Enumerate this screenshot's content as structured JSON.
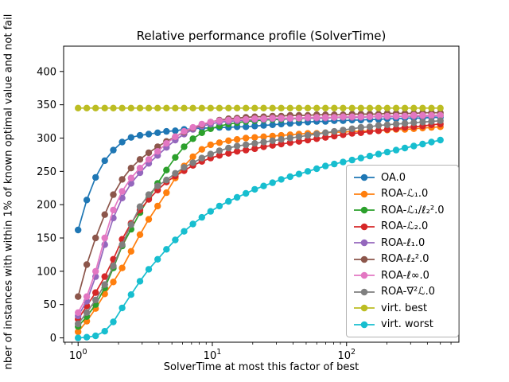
{
  "figure": {
    "title": "Relative performance profile (SolverTime)",
    "xlabel": "SolverTime at most this factor of best",
    "ylabel_visible": "nber of instances with within 1% of known optimal value and not fail",
    "background": "#ffffff",
    "frame_color": "#000000"
  },
  "chart_data": {
    "type": "line",
    "xscale": "log",
    "grid": false,
    "legend_position": "center right",
    "xlim": [
      0.78,
      687
    ],
    "ylim": [
      -6.5,
      438
    ],
    "yticks": [
      0,
      50,
      100,
      150,
      200,
      250,
      300,
      350,
      400
    ],
    "x_major_ticks": [
      {
        "value": 1,
        "base": "10",
        "exp": "0"
      },
      {
        "value": 10,
        "base": "10",
        "exp": "1"
      },
      {
        "value": 100,
        "base": "10",
        "exp": "2"
      }
    ],
    "x_minor_ticks": [
      0.8,
      0.9,
      2,
      3,
      4,
      5,
      6,
      7,
      8,
      9,
      20,
      30,
      40,
      50,
      60,
      70,
      80,
      90,
      200,
      300,
      400,
      500,
      600
    ],
    "marker": "circle",
    "marker_size": 4.2,
    "line_width": 1.7,
    "x": [
      1.0,
      1.16,
      1.35,
      1.58,
      1.83,
      2.13,
      2.48,
      2.89,
      3.36,
      3.91,
      4.55,
      5.3,
      6.16,
      7.17,
      8.35,
      9.71,
      11.3,
      13.2,
      15.3,
      17.8,
      20.7,
      24.1,
      28.1,
      32.6,
      38.0,
      44.2,
      51.4,
      59.9,
      69.6,
      81.0,
      94.3,
      110,
      128,
      149,
      173,
      201,
      234,
      272,
      317,
      369,
      429,
      500
    ],
    "series": [
      {
        "name": "OA.0",
        "color": "#1f77b4",
        "values": [
          162,
          207,
          241,
          266,
          282,
          294,
          301,
          304,
          306,
          308,
          310,
          311,
          313,
          314,
          315,
          315,
          316,
          316,
          317,
          317,
          318,
          319,
          320,
          321,
          322,
          323,
          324,
          325,
          325,
          326,
          326,
          327,
          327,
          328,
          328,
          329,
          329,
          330,
          330,
          330,
          331,
          331
        ]
      },
      {
        "name": "ROA-ℒ₁.0",
        "color": "#ff7f0e",
        "values": [
          9,
          25,
          44,
          66,
          84,
          105,
          130,
          155,
          178,
          198,
          218,
          240,
          258,
          272,
          283,
          290,
          293,
          296,
          298,
          300,
          301,
          302,
          303,
          304,
          305,
          306,
          307,
          307,
          308,
          309,
          309,
          310,
          310,
          311,
          311,
          312,
          313,
          313,
          314,
          315,
          316,
          317
        ]
      },
      {
        "name": "ROA-ℒ₁/ℓ₂².0",
        "color": "#2ca02c",
        "values": [
          17,
          32,
          50,
          75,
          105,
          138,
          163,
          188,
          210,
          232,
          252,
          271,
          287,
          299,
          308,
          314,
          318,
          321,
          323,
          325,
          326,
          327,
          328,
          328,
          329,
          329,
          330,
          330,
          330,
          331,
          331,
          331,
          332,
          332,
          332,
          332,
          333,
          333,
          333,
          333,
          334,
          334
        ]
      },
      {
        "name": "ROA-ℒ₂.0",
        "color": "#d62728",
        "values": [
          28,
          48,
          68,
          92,
          118,
          148,
          172,
          192,
          208,
          222,
          234,
          243,
          251,
          259,
          265,
          270,
          274,
          277,
          280,
          282,
          284,
          287,
          289,
          291,
          293,
          295,
          297,
          299,
          301,
          303,
          305,
          307,
          308,
          310,
          311,
          313,
          314,
          316,
          317,
          318,
          320,
          321
        ]
      },
      {
        "name": "ROA-ℓ₁.0",
        "color": "#9467bd",
        "values": [
          33,
          55,
          92,
          140,
          180,
          210,
          232,
          248,
          262,
          274,
          286,
          297,
          306,
          313,
          318,
          321,
          324,
          325,
          326,
          327,
          328,
          328,
          329,
          329,
          329,
          330,
          330,
          330,
          330,
          331,
          331,
          331,
          331,
          332,
          332,
          332,
          332,
          333,
          333,
          333,
          333,
          334
        ]
      },
      {
        "name": "ROA-ℓ₂².0",
        "color": "#8c564b",
        "values": [
          62,
          110,
          150,
          185,
          215,
          238,
          255,
          268,
          278,
          287,
          295,
          302,
          309,
          315,
          320,
          324,
          327,
          329,
          330,
          331,
          332,
          332,
          333,
          333,
          334,
          334,
          334,
          335,
          335,
          335,
          335,
          336,
          336,
          336,
          336,
          337,
          337,
          337,
          337,
          338,
          338,
          338
        ]
      },
      {
        "name": "ROA-ℓ∞.0",
        "color": "#e377c2",
        "values": [
          38,
          62,
          100,
          150,
          192,
          220,
          240,
          255,
          268,
          280,
          292,
          302,
          310,
          316,
          321,
          324,
          326,
          327,
          328,
          328,
          329,
          329,
          330,
          330,
          330,
          330,
          331,
          331,
          331,
          331,
          332,
          332,
          332,
          332,
          333,
          333,
          333,
          333,
          334,
          334,
          334,
          334
        ]
      },
      {
        "name": "ROA-∇²ℒ.0",
        "color": "#7f7f7f",
        "values": [
          21,
          38,
          57,
          80,
          108,
          140,
          170,
          197,
          215,
          228,
          237,
          247,
          256,
          263,
          270,
          276,
          281,
          285,
          288,
          290,
          292,
          294,
          296,
          298,
          300,
          302,
          304,
          306,
          308,
          310,
          312,
          314,
          316,
          317,
          319,
          320,
          321,
          322,
          323,
          324,
          325,
          326
        ]
      },
      {
        "name": "virt. best",
        "color": "#bcbd22",
        "values": [
          345,
          345,
          345,
          345,
          345,
          345,
          345,
          345,
          345,
          345,
          345,
          345,
          345,
          345,
          345,
          345,
          345,
          345,
          345,
          345,
          345,
          345,
          345,
          345,
          345,
          345,
          345,
          345,
          345,
          345,
          345,
          345,
          345,
          345,
          345,
          345,
          345,
          345,
          345,
          345,
          345,
          345
        ]
      },
      {
        "name": "virt. worst",
        "color": "#17becf",
        "values": [
          0,
          1,
          3,
          10,
          24,
          45,
          65,
          85,
          103,
          118,
          133,
          147,
          160,
          171,
          181,
          190,
          198,
          205,
          211,
          217,
          223,
          228,
          233,
          238,
          242,
          246,
          250,
          254,
          258,
          261,
          264,
          267,
          270,
          273,
          276,
          279,
          282,
          285,
          288,
          291,
          294,
          297
        ]
      }
    ]
  }
}
